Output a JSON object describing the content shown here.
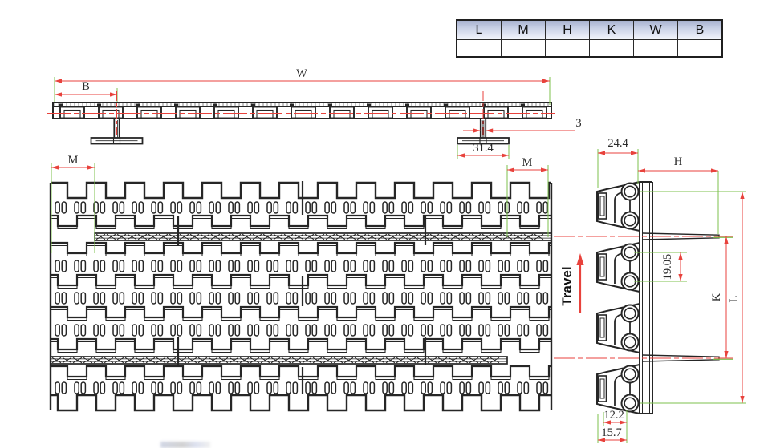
{
  "table": {
    "headers": [
      "L",
      "M",
      "H",
      "K",
      "W",
      "B"
    ],
    "values": [
      "",
      "",
      "",
      "",
      "",
      ""
    ]
  },
  "dimensions": {
    "belt_width": "W",
    "edge_to_flight": "B",
    "edge_margin_left": "M",
    "edge_margin_right": "M",
    "flight_thickness": "3",
    "flight_foot_width": "31.4",
    "link_width": "24.4",
    "flight_height": "H",
    "hinge_pitch": "19.05",
    "flight_span": "K",
    "overall_length": "L",
    "hole_offset": "12.2",
    "edge_offset": "15.7"
  },
  "annotations": {
    "travel_direction": "Travel"
  },
  "colors": {
    "line_dark": "#262626",
    "dimension_red": "#e8423c",
    "extension_green": "#7cc24e",
    "table_header_top": "#a7b1cf",
    "table_header_bottom": "#f3f5fb"
  }
}
